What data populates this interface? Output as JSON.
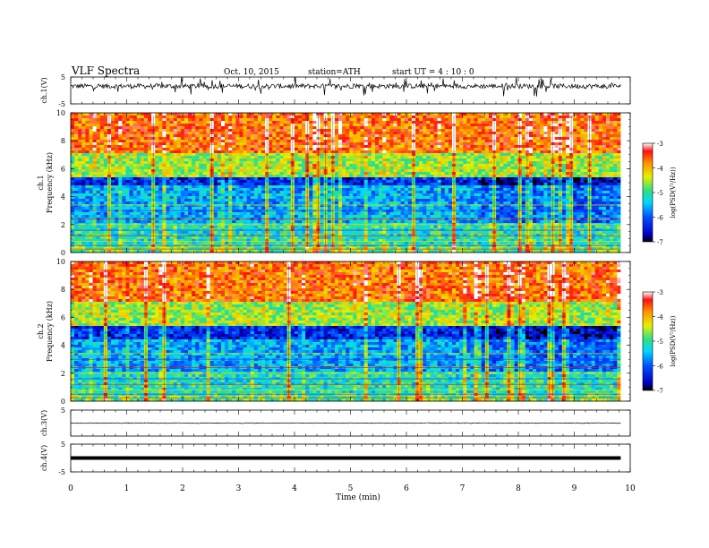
{
  "header": {
    "title": "VLF  Spectra",
    "date": "Oct. 10, 2015",
    "station": "station=ATH",
    "start": "start  UT  =   4  : 10 : 0"
  },
  "chart_data": [
    {
      "type": "line",
      "name": "ch1-waveform",
      "ylabel": "ch.1(V)",
      "ylim": [
        -5,
        5
      ],
      "yticks": [
        5,
        -5
      ],
      "xlim": [
        0,
        10
      ]
    },
    {
      "type": "heatmap",
      "name": "ch1-spectrogram",
      "ylabel": [
        "ch.1",
        "Frequency  (kHz)"
      ],
      "ylim": [
        0,
        10
      ],
      "yticks": [
        0,
        2,
        4,
        6,
        8,
        10
      ],
      "xlim": [
        0,
        9.83
      ],
      "colorbar": {
        "label": "log(PSD(V²/Hz))",
        "range": [
          -7,
          -3
        ],
        "ticks": [
          -3,
          -4,
          -5,
          -6,
          -7
        ]
      }
    },
    {
      "type": "heatmap",
      "name": "ch2-spectrogram",
      "ylabel": [
        "ch.2",
        "Frequency  (kHz)"
      ],
      "ylim": [
        0,
        10
      ],
      "yticks": [
        0,
        2,
        4,
        6,
        8,
        10
      ],
      "xlim": [
        0,
        9.83
      ],
      "colorbar": {
        "label": "log(PSD(V²/Hz))",
        "range": [
          -7,
          -3
        ],
        "ticks": [
          -3,
          -4,
          -5,
          -6,
          -7
        ]
      }
    },
    {
      "type": "line",
      "name": "ch3-waveform",
      "ylabel": "ch.3(V)",
      "ylim": [
        -5,
        5
      ],
      "yticks": [
        5
      ],
      "xlim": [
        0,
        10
      ]
    },
    {
      "type": "line",
      "name": "ch4-waveform",
      "ylabel": "ch.4(V)",
      "ylim": [
        -5,
        5
      ],
      "yticks": [
        5,
        -5
      ],
      "xlim": [
        0,
        10
      ]
    }
  ],
  "xaxis": {
    "label": "Time  (min)",
    "ticks": [
      0,
      1,
      2,
      3,
      4,
      5,
      6,
      7,
      8,
      9,
      10
    ]
  }
}
